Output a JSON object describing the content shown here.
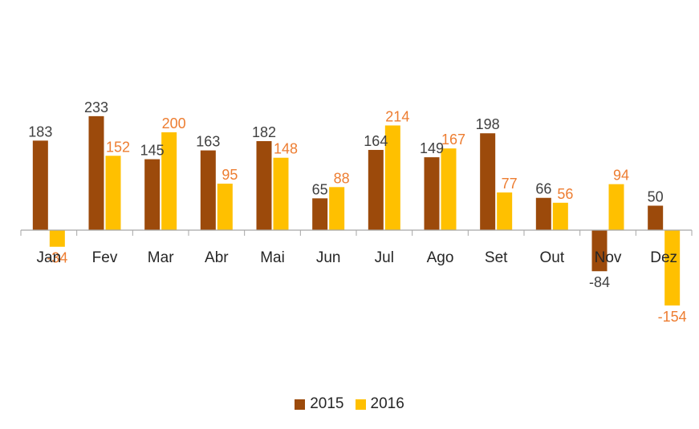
{
  "chart_data": {
    "type": "bar",
    "categories": [
      "Jan",
      "Fev",
      "Mar",
      "Abr",
      "Mai",
      "Jun",
      "Jul",
      "Ago",
      "Set",
      "Out",
      "Nov",
      "Dez"
    ],
    "series": [
      {
        "name": "2015",
        "color": "#9c4a0b",
        "values": [
          183,
          233,
          145,
          163,
          182,
          65,
          164,
          149,
          198,
          66,
          -84,
          50
        ]
      },
      {
        "name": "2016",
        "color": "#ffc000",
        "values": [
          -34,
          152,
          200,
          95,
          148,
          88,
          214,
          167,
          77,
          56,
          94,
          -154
        ]
      }
    ],
    "title": "",
    "xlabel": "",
    "ylabel": "",
    "ylim": [
      -200,
      250
    ],
    "grid": false,
    "legend": "bottom",
    "data_label_colors": {
      "2015": "#404040",
      "2016": "#ed7d31"
    }
  }
}
